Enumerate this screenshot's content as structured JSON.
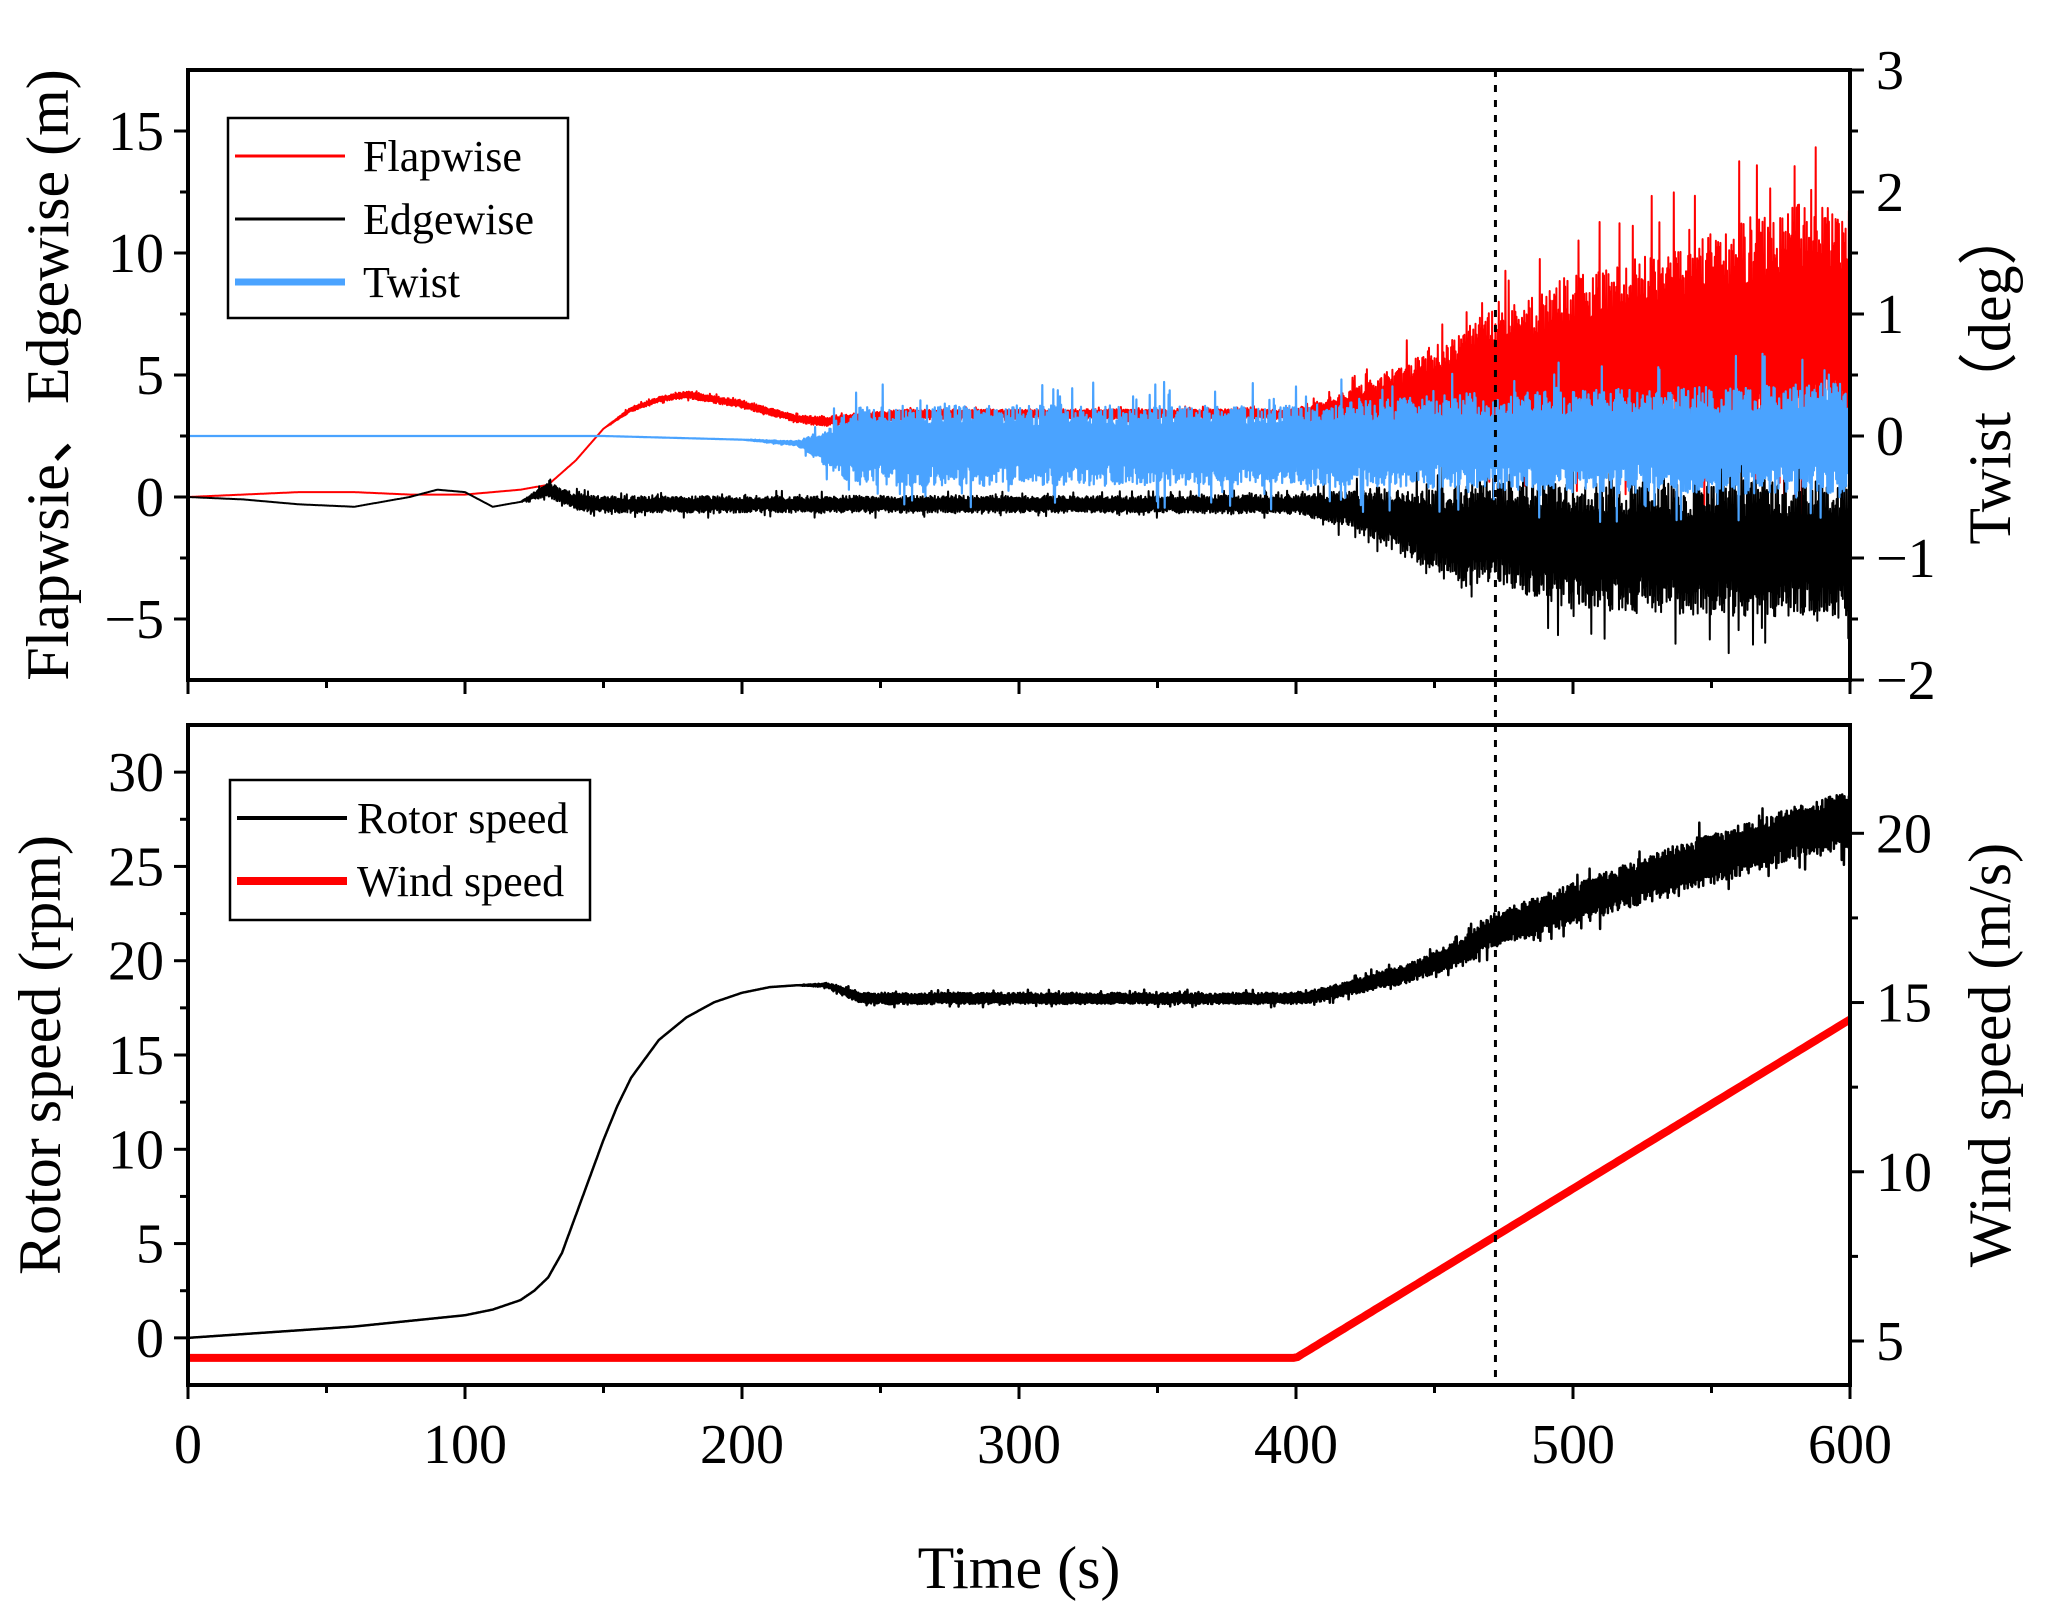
{
  "chart_data": [
    {
      "type": "line",
      "panel": "top",
      "ylabel": "Flapwsie、Edgewise (m)",
      "y2label": "Twist（deg）",
      "xlim": [
        0,
        600
      ],
      "ylim": [
        -7.5,
        17.5
      ],
      "y2lim": [
        -2,
        3
      ],
      "yticks": [
        -5,
        0,
        5,
        10,
        15
      ],
      "ytick_labels": [
        "−5",
        "0",
        "5",
        "10",
        "15"
      ],
      "y2ticks": [
        -2,
        -1,
        0,
        1,
        2,
        3
      ],
      "y2tick_labels": [
        "−2",
        "−1",
        "0",
        "1",
        "2",
        "3"
      ],
      "legend_position": "top-left",
      "series": [
        {
          "name": "Flapwise",
          "color": "#ff0000",
          "axis": "left",
          "x": [
            0,
            20,
            40,
            60,
            80,
            100,
            120,
            130,
            140,
            150,
            160,
            170,
            180,
            190,
            200,
            210,
            220,
            230,
            240,
            260,
            300,
            350,
            400,
            420,
            440,
            460,
            470,
            480,
            500,
            520,
            540,
            560,
            580,
            600
          ],
          "values": [
            0,
            0.1,
            0.2,
            0.2,
            0.1,
            0.1,
            0.3,
            0.5,
            1.5,
            2.8,
            3.6,
            4.0,
            4.2,
            4.0,
            3.8,
            3.5,
            3.2,
            3.1,
            3.2,
            3.4,
            3.4,
            3.4,
            3.4,
            3.6,
            3.9,
            4.5,
            4.8,
            5.0,
            5.6,
            5.8,
            6.2,
            6.6,
            7.0,
            7.2
          ],
          "amplitude": [
            0,
            0,
            0,
            0,
            0,
            0,
            0,
            0,
            0,
            0,
            0.1,
            0.1,
            0.15,
            0.15,
            0.15,
            0.15,
            0.15,
            0.2,
            0.2,
            0.2,
            0.2,
            0.2,
            0.2,
            0.8,
            1.6,
            2.5,
            2.8,
            3.0,
            3.6,
            4.0,
            4.2,
            4.6,
            5.0,
            4.6
          ]
        },
        {
          "name": "Edgewise",
          "color": "#000000",
          "axis": "left",
          "x": [
            0,
            20,
            40,
            60,
            80,
            90,
            100,
            110,
            120,
            130,
            140,
            150,
            200,
            250,
            300,
            350,
            400,
            420,
            440,
            460,
            470,
            480,
            500,
            520,
            540,
            560,
            580,
            600
          ],
          "values": [
            0,
            -0.1,
            -0.3,
            -0.4,
            0,
            0.3,
            0.2,
            -0.4,
            -0.2,
            0.3,
            -0.2,
            -0.3,
            -0.3,
            -0.3,
            -0.3,
            -0.3,
            -0.3,
            -0.5,
            -1.0,
            -1.6,
            -1.4,
            -1.6,
            -2.0,
            -2.0,
            -2.1,
            -2.1,
            -2.1,
            -2.2
          ],
          "amplitude": [
            0,
            0,
            0,
            0,
            0,
            0,
            0,
            0,
            0,
            0.3,
            0.35,
            0.35,
            0.35,
            0.35,
            0.35,
            0.35,
            0.4,
            0.8,
            1.5,
            2.2,
            2.0,
            2.3,
            2.6,
            2.7,
            2.7,
            2.8,
            2.8,
            2.8
          ]
        },
        {
          "name": "Twist",
          "color": "#4aa3ff",
          "axis": "right",
          "x": [
            0,
            100,
            150,
            200,
            220,
            230,
            240,
            300,
            400,
            420,
            440,
            460,
            480,
            500,
            550,
            600
          ],
          "values": [
            0,
            0,
            0,
            -0.03,
            -0.06,
            -0.1,
            -0.08,
            -0.08,
            -0.08,
            -0.07,
            -0.05,
            -0.04,
            -0.04,
            -0.04,
            -0.03,
            -0.02
          ],
          "amplitude": [
            0,
            0,
            0,
            0,
            0.02,
            0.15,
            0.33,
            0.33,
            0.33,
            0.35,
            0.37,
            0.39,
            0.4,
            0.42,
            0.44,
            0.46
          ]
        }
      ]
    },
    {
      "type": "line",
      "panel": "bottom",
      "xlabel": "Time (s)",
      "ylabel": "Rotor speed (rpm)",
      "y2label": "Wind speed (m/s)",
      "xlim": [
        0,
        600
      ],
      "xticks": [
        0,
        100,
        200,
        300,
        400,
        500,
        600
      ],
      "xtick_labels": [
        "0",
        "100",
        "200",
        "300",
        "400",
        "500",
        "600"
      ],
      "ylim": [
        -2.5,
        32.5
      ],
      "y2lim": [
        3.7,
        23.2
      ],
      "yticks": [
        0,
        5,
        10,
        15,
        20,
        25,
        30
      ],
      "ytick_labels": [
        "0",
        "5",
        "10",
        "15",
        "20",
        "25",
        "30"
      ],
      "y2ticks": [
        5,
        10,
        15,
        20
      ],
      "y2tick_labels": [
        "5",
        "10",
        "15",
        "20"
      ],
      "legend_position": "top-left",
      "series": [
        {
          "name": "Rotor speed",
          "color": "#000000",
          "axis": "left",
          "x": [
            0,
            20,
            40,
            60,
            80,
            100,
            110,
            120,
            125,
            130,
            135,
            140,
            145,
            150,
            155,
            160,
            170,
            180,
            190,
            200,
            210,
            220,
            230,
            235,
            240,
            245,
            250,
            300,
            350,
            400,
            410,
            420,
            440,
            460,
            470,
            480,
            500,
            520,
            540,
            560,
            580,
            600
          ],
          "values": [
            0,
            0.2,
            0.4,
            0.6,
            0.9,
            1.2,
            1.5,
            2.0,
            2.5,
            3.2,
            4.5,
            6.5,
            8.5,
            10.5,
            12.3,
            13.8,
            15.8,
            17.0,
            17.8,
            18.3,
            18.6,
            18.7,
            18.7,
            18.5,
            18.2,
            18.0,
            18.0,
            18.0,
            18.0,
            18.0,
            18.2,
            18.6,
            19.3,
            20.5,
            21.5,
            22.0,
            23.0,
            24.0,
            25.0,
            25.8,
            26.8,
            27.5
          ],
          "amplitude": [
            0,
            0,
            0,
            0,
            0,
            0,
            0,
            0,
            0,
            0,
            0,
            0,
            0,
            0,
            0,
            0,
            0,
            0,
            0,
            0,
            0,
            0,
            0.1,
            0.2,
            0.3,
            0.3,
            0.3,
            0.3,
            0.3,
            0.3,
            0.35,
            0.4,
            0.5,
            0.7,
            0.9,
            1.0,
            1.1,
            1.2,
            1.3,
            1.4,
            1.4,
            1.5
          ]
        },
        {
          "name": "Wind speed",
          "color": "#ff0000",
          "axis": "right",
          "x": [
            0,
            400,
            600
          ],
          "values": [
            4.5,
            4.5,
            14.5
          ],
          "amplitude": [
            0,
            0,
            0
          ]
        }
      ]
    }
  ],
  "vline": {
    "x": 472
  }
}
